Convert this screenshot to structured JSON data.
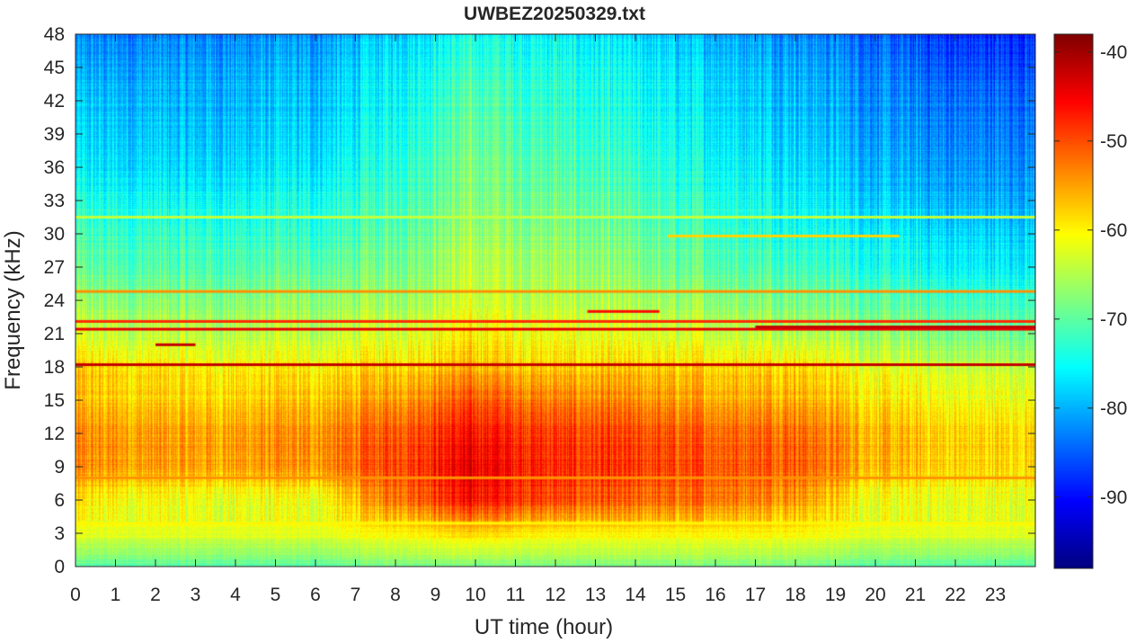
{
  "chart_data": {
    "type": "heatmap",
    "title": "UWBEZ20250329.txt",
    "xlabel": "UT time (hour)",
    "ylabel": "Frequency (kHz)",
    "xlim": [
      0,
      24
    ],
    "ylim": [
      0,
      48
    ],
    "x_ticks": [
      "0",
      "1",
      "2",
      "3",
      "4",
      "5",
      "6",
      "7",
      "8",
      "9",
      "10",
      "11",
      "12",
      "13",
      "14",
      "15",
      "16",
      "17",
      "18",
      "19",
      "20",
      "21",
      "22",
      "23"
    ],
    "y_ticks": [
      "0",
      "3",
      "6",
      "9",
      "12",
      "15",
      "18",
      "21",
      "24",
      "27",
      "30",
      "33",
      "36",
      "39",
      "42",
      "45",
      "48"
    ],
    "colorbar": {
      "colormap": "jet",
      "range": [
        -98,
        -38
      ],
      "ticks": [
        "-40",
        "-50",
        "-60",
        "-70",
        "-80",
        "-90"
      ]
    },
    "approx_levels_db": {
      "freq_kHz": [
        0,
        3,
        6,
        9,
        12,
        15,
        18,
        21,
        24,
        27,
        30,
        33,
        36,
        39,
        42,
        45,
        48
      ],
      "hour": [
        0,
        3,
        6,
        8,
        10,
        12,
        14,
        16,
        18,
        20,
        22,
        24
      ],
      "values": [
        [
          -70,
          -70,
          -70,
          -68,
          -68,
          -68,
          -68,
          -68,
          -68,
          -70,
          -70,
          -70
        ],
        [
          -62,
          -62,
          -62,
          -60,
          -58,
          -60,
          -60,
          -60,
          -60,
          -62,
          -62,
          -62
        ],
        [
          -60,
          -62,
          -62,
          -52,
          -46,
          -50,
          -52,
          -52,
          -54,
          -62,
          -62,
          -62
        ],
        [
          -54,
          -55,
          -54,
          -49,
          -44,
          -48,
          -49,
          -50,
          -50,
          -56,
          -58,
          -58
        ],
        [
          -54,
          -55,
          -54,
          -50,
          -46,
          -49,
          -50,
          -51,
          -51,
          -56,
          -58,
          -58
        ],
        [
          -57,
          -58,
          -57,
          -54,
          -50,
          -53,
          -54,
          -55,
          -55,
          -59,
          -61,
          -61
        ],
        [
          -58,
          -60,
          -60,
          -58,
          -56,
          -58,
          -58,
          -58,
          -58,
          -62,
          -64,
          -64
        ],
        [
          -64,
          -65,
          -65,
          -63,
          -60,
          -62,
          -63,
          -64,
          -65,
          -67,
          -69,
          -69
        ],
        [
          -67,
          -68,
          -67,
          -66,
          -63,
          -65,
          -66,
          -67,
          -68,
          -70,
          -72,
          -72
        ],
        [
          -70,
          -71,
          -70,
          -68,
          -64,
          -66,
          -68,
          -70,
          -71,
          -74,
          -76,
          -76
        ],
        [
          -72,
          -73,
          -73,
          -70,
          -66,
          -68,
          -70,
          -72,
          -74,
          -76,
          -78,
          -78
        ],
        [
          -74,
          -75,
          -74,
          -71,
          -67,
          -69,
          -71,
          -73,
          -75,
          -78,
          -80,
          -80
        ],
        [
          -77,
          -78,
          -77,
          -73,
          -68,
          -71,
          -73,
          -75,
          -77,
          -80,
          -82,
          -82
        ],
        [
          -78,
          -79,
          -78,
          -74,
          -69,
          -72,
          -74,
          -76,
          -78,
          -81,
          -83,
          -83
        ],
        [
          -79,
          -80,
          -79,
          -75,
          -70,
          -73,
          -75,
          -77,
          -79,
          -82,
          -84,
          -84
        ],
        [
          -81,
          -81,
          -80,
          -76,
          -72,
          -74,
          -76,
          -78,
          -80,
          -83,
          -86,
          -86
        ],
        [
          -83,
          -83,
          -82,
          -78,
          -74,
          -76,
          -78,
          -80,
          -82,
          -85,
          -88,
          -88
        ]
      ]
    },
    "narrowband_lines": [
      {
        "freq_kHz": 18.2,
        "from_hour": 0,
        "to_hour": 24,
        "level_db": -42
      },
      {
        "freq_kHz": 21.4,
        "from_hour": 0,
        "to_hour": 24,
        "level_db": -44
      },
      {
        "freq_kHz": 22.1,
        "from_hour": 0,
        "to_hour": 24,
        "level_db": -48
      },
      {
        "freq_kHz": 24.8,
        "from_hour": 0,
        "to_hour": 24,
        "level_db": -54
      },
      {
        "freq_kHz": 8.0,
        "from_hour": 0,
        "to_hour": 24,
        "level_db": -54
      },
      {
        "freq_kHz": 3.9,
        "from_hour": 0,
        "to_hour": 24,
        "level_db": -60
      },
      {
        "freq_kHz": 31.5,
        "from_hour": 0,
        "to_hour": 24,
        "level_db": -64
      },
      {
        "freq_kHz": 29.8,
        "from_hour": 14.8,
        "to_hour": 20.6,
        "level_db": -58
      },
      {
        "freq_kHz": 20.0,
        "from_hour": 2.0,
        "to_hour": 3.0,
        "level_db": -42
      },
      {
        "freq_kHz": 23.0,
        "from_hour": 12.8,
        "to_hour": 14.6,
        "level_db": -46
      },
      {
        "freq_kHz": 21.6,
        "from_hour": 17.0,
        "to_hour": 24,
        "level_db": -42
      }
    ],
    "annotations": [],
    "grid": false,
    "legend": "colorbar-right"
  },
  "colors": {
    "axis": "#262626",
    "background": "#ffffff"
  }
}
